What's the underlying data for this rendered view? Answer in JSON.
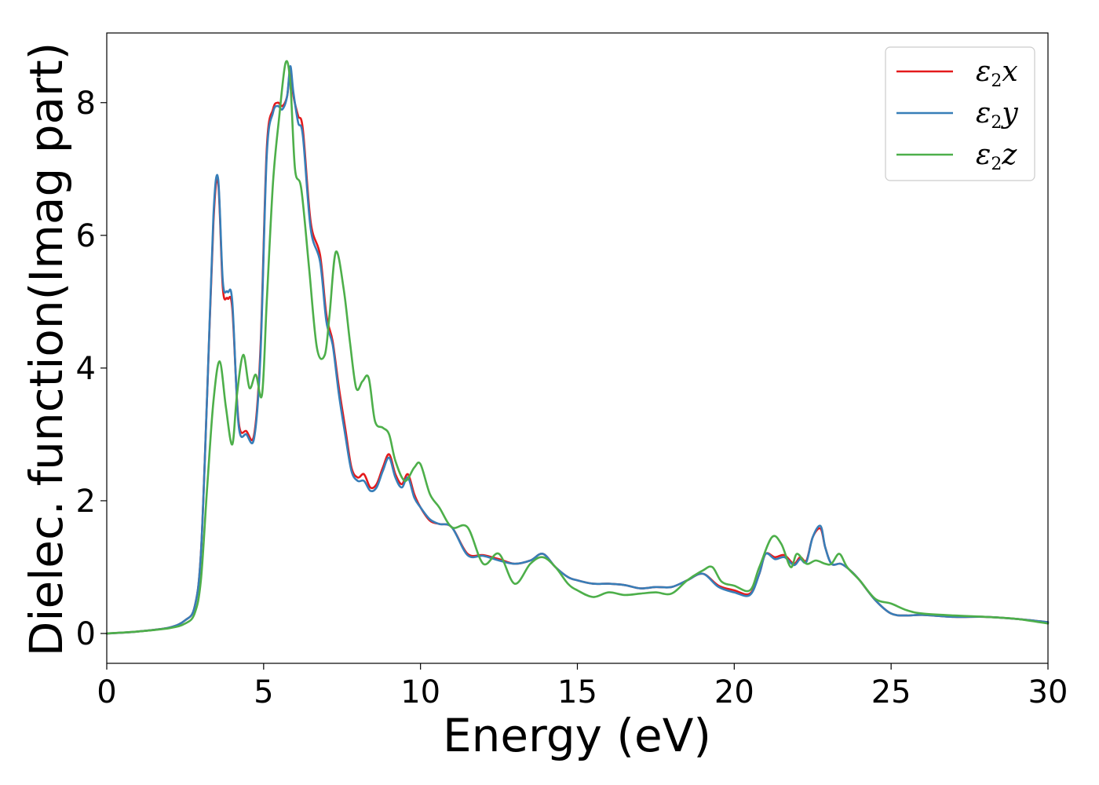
{
  "chart_data": {
    "type": "line",
    "title": "",
    "xlabel": "Energy (eV)",
    "ylabel": "Dielec. function(Imag part)",
    "xlim": [
      0,
      30
    ],
    "ylim": [
      -0.45,
      9.05
    ],
    "xticks": [
      0,
      5,
      10,
      15,
      20,
      25,
      30
    ],
    "yticks": [
      0,
      2,
      4,
      6,
      8
    ],
    "grid": false,
    "legend_position": "top-right",
    "series": [
      {
        "name": "ε2x",
        "legend_main": "ε",
        "legend_sub": "2",
        "legend_tail": "x",
        "color": "#e41a1c",
        "x": [
          0,
          1,
          2,
          2.5,
          2.8,
          3.0,
          3.2,
          3.4,
          3.55,
          3.7,
          3.85,
          4.0,
          4.2,
          4.45,
          4.7,
          4.9,
          5.1,
          5.3,
          5.45,
          5.6,
          5.75,
          5.85,
          5.95,
          6.1,
          6.25,
          6.5,
          6.8,
          7.0,
          7.2,
          7.4,
          7.6,
          7.8,
          8.0,
          8.2,
          8.4,
          8.6,
          8.8,
          9.0,
          9.2,
          9.4,
          9.6,
          9.8,
          10.0,
          10.3,
          10.6,
          11.0,
          11.5,
          12.0,
          12.5,
          13.0,
          13.5,
          13.9,
          14.3,
          14.7,
          15.0,
          15.5,
          16.0,
          16.5,
          17.0,
          17.5,
          18.0,
          18.5,
          19.0,
          19.5,
          20.0,
          20.5,
          20.8,
          21.0,
          21.3,
          21.6,
          21.9,
          22.1,
          22.3,
          22.5,
          22.75,
          22.9,
          23.1,
          23.4,
          23.7,
          24.0,
          24.5,
          25.0,
          25.5,
          26.0,
          27.0,
          28.0,
          29.0,
          30.0
        ],
        "y": [
          0.0,
          0.03,
          0.09,
          0.2,
          0.4,
          1.2,
          3.6,
          6.2,
          6.8,
          5.2,
          5.05,
          4.9,
          3.2,
          3.05,
          3.0,
          4.3,
          7.3,
          7.9,
          8.0,
          7.95,
          8.1,
          8.5,
          8.1,
          7.8,
          7.6,
          6.2,
          5.7,
          4.8,
          4.4,
          3.7,
          3.1,
          2.5,
          2.35,
          2.4,
          2.2,
          2.25,
          2.5,
          2.7,
          2.4,
          2.25,
          2.4,
          2.1,
          1.9,
          1.7,
          1.65,
          1.6,
          1.2,
          1.18,
          1.12,
          1.05,
          1.1,
          1.2,
          1.0,
          0.85,
          0.8,
          0.75,
          0.75,
          0.73,
          0.68,
          0.7,
          0.7,
          0.8,
          0.9,
          0.72,
          0.65,
          0.6,
          0.9,
          1.2,
          1.15,
          1.18,
          1.05,
          1.15,
          1.1,
          1.45,
          1.58,
          1.3,
          1.05,
          1.05,
          0.95,
          0.8,
          0.5,
          0.3,
          0.27,
          0.28,
          0.25,
          0.25,
          0.22,
          0.17
        ]
      },
      {
        "name": "ε2y",
        "legend_main": "ε",
        "legend_sub": "2",
        "legend_tail": "y",
        "color": "#377eb8",
        "x": [
          0,
          1,
          2,
          2.5,
          2.8,
          3.0,
          3.2,
          3.4,
          3.55,
          3.7,
          3.85,
          4.0,
          4.2,
          4.45,
          4.7,
          4.9,
          5.1,
          5.3,
          5.45,
          5.6,
          5.75,
          5.85,
          5.95,
          6.1,
          6.25,
          6.5,
          6.8,
          7.0,
          7.2,
          7.4,
          7.6,
          7.8,
          8.0,
          8.2,
          8.4,
          8.6,
          8.8,
          9.0,
          9.2,
          9.4,
          9.6,
          9.8,
          10.0,
          10.3,
          10.6,
          11.0,
          11.5,
          12.0,
          12.5,
          13.0,
          13.5,
          13.9,
          14.3,
          14.7,
          15.0,
          15.5,
          16.0,
          16.5,
          17.0,
          17.5,
          18.0,
          18.5,
          19.0,
          19.5,
          20.0,
          20.5,
          20.8,
          21.0,
          21.3,
          21.6,
          21.9,
          22.1,
          22.3,
          22.5,
          22.75,
          22.9,
          23.1,
          23.4,
          23.7,
          24.0,
          24.5,
          25.0,
          25.5,
          26.0,
          27.0,
          28.0,
          29.0,
          30.0
        ],
        "y": [
          0.0,
          0.03,
          0.09,
          0.2,
          0.4,
          1.2,
          3.6,
          6.3,
          6.85,
          5.3,
          5.15,
          5.0,
          3.15,
          3.0,
          2.95,
          4.2,
          7.2,
          7.85,
          7.95,
          7.9,
          8.1,
          8.55,
          8.15,
          7.7,
          7.5,
          6.1,
          5.6,
          4.7,
          4.35,
          3.6,
          3.0,
          2.45,
          2.3,
          2.3,
          2.15,
          2.2,
          2.45,
          2.65,
          2.35,
          2.2,
          2.35,
          2.05,
          1.9,
          1.72,
          1.65,
          1.6,
          1.18,
          1.17,
          1.1,
          1.05,
          1.1,
          1.2,
          1.0,
          0.85,
          0.8,
          0.75,
          0.75,
          0.73,
          0.68,
          0.7,
          0.7,
          0.8,
          0.9,
          0.7,
          0.62,
          0.58,
          0.9,
          1.2,
          1.12,
          1.15,
          1.03,
          1.12,
          1.08,
          1.45,
          1.62,
          1.3,
          1.05,
          1.05,
          0.95,
          0.8,
          0.5,
          0.3,
          0.27,
          0.28,
          0.25,
          0.25,
          0.22,
          0.17
        ]
      },
      {
        "name": "ε2z",
        "legend_main": "ε",
        "legend_sub": "2",
        "legend_tail": "z",
        "color": "#4daf4a",
        "x": [
          0,
          1,
          2,
          2.5,
          2.8,
          3.0,
          3.2,
          3.4,
          3.6,
          3.8,
          4.0,
          4.15,
          4.35,
          4.55,
          4.75,
          4.95,
          5.1,
          5.3,
          5.5,
          5.7,
          5.85,
          6.0,
          6.2,
          6.45,
          6.7,
          6.95,
          7.1,
          7.3,
          7.55,
          7.75,
          7.95,
          8.15,
          8.35,
          8.55,
          8.8,
          9.0,
          9.2,
          9.5,
          9.8,
          10.0,
          10.3,
          10.6,
          11.0,
          11.5,
          12.0,
          12.5,
          13.0,
          13.5,
          13.9,
          14.3,
          14.7,
          15.0,
          15.5,
          16.0,
          16.5,
          17.0,
          17.5,
          18.0,
          18.5,
          19.0,
          19.3,
          19.6,
          20.0,
          20.5,
          20.8,
          21.2,
          21.5,
          21.8,
          22.0,
          22.3,
          22.6,
          22.9,
          23.1,
          23.35,
          23.6,
          24.0,
          24.5,
          25.0,
          25.5,
          26.0,
          27.0,
          28.0,
          29.0,
          30.0
        ],
        "y": [
          0.0,
          0.03,
          0.08,
          0.15,
          0.3,
          0.8,
          2.2,
          3.5,
          4.1,
          3.4,
          2.85,
          3.6,
          4.2,
          3.7,
          3.9,
          3.6,
          5.0,
          6.8,
          7.8,
          8.6,
          8.3,
          7.0,
          6.7,
          5.5,
          4.3,
          4.2,
          4.8,
          5.75,
          5.2,
          4.4,
          3.7,
          3.8,
          3.85,
          3.2,
          3.1,
          3.0,
          2.6,
          2.3,
          2.5,
          2.55,
          2.1,
          1.9,
          1.6,
          1.6,
          1.05,
          1.2,
          0.75,
          1.05,
          1.15,
          1.0,
          0.75,
          0.65,
          0.55,
          0.62,
          0.58,
          0.6,
          0.62,
          0.6,
          0.8,
          0.95,
          1.0,
          0.78,
          0.72,
          0.65,
          1.0,
          1.45,
          1.35,
          1.0,
          1.2,
          1.05,
          1.1,
          1.05,
          1.05,
          1.2,
          1.0,
          0.8,
          0.52,
          0.45,
          0.35,
          0.3,
          0.27,
          0.25,
          0.22,
          0.15
        ]
      }
    ]
  }
}
